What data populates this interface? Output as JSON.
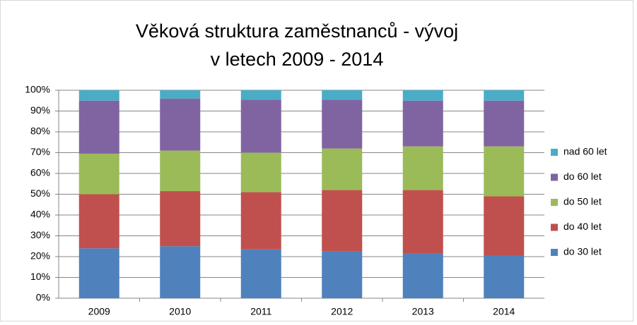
{
  "chart_data": {
    "type": "stacked_bar_100",
    "title": [
      "Věková struktura zaměstnanců - vývoj",
      "v letech 2009 - 2014"
    ],
    "categories": [
      "2009",
      "2010",
      "2011",
      "2012",
      "2013",
      "2014"
    ],
    "series": [
      {
        "name": "do 30 let",
        "color": "#4f81bd",
        "values": [
          24,
          25,
          23.5,
          22.5,
          21.5,
          20.5
        ]
      },
      {
        "name": "do 40 let",
        "color": "#c0504d",
        "values": [
          26,
          26.5,
          27.5,
          29.5,
          30.5,
          28.5
        ]
      },
      {
        "name": "do 50 let",
        "color": "#9bbb59",
        "values": [
          19.5,
          19.5,
          19,
          20,
          21,
          24
        ]
      },
      {
        "name": "do 60 let",
        "color": "#8064a2",
        "values": [
          25.5,
          25,
          25.5,
          23.5,
          22,
          22
        ]
      },
      {
        "name": "nad 60 let",
        "color": "#4bacc6",
        "values": [
          5,
          4,
          4.5,
          4.5,
          5,
          5
        ]
      }
    ],
    "ylim": [
      0,
      100
    ],
    "yticks": [
      {
        "value": 0,
        "label": "0%"
      },
      {
        "value": 10,
        "label": "10%"
      },
      {
        "value": 20,
        "label": "20%"
      },
      {
        "value": 30,
        "label": "30%"
      },
      {
        "value": 40,
        "label": "40%"
      },
      {
        "value": 50,
        "label": "50%"
      },
      {
        "value": 60,
        "label": "60%"
      },
      {
        "value": 70,
        "label": "70%"
      },
      {
        "value": 80,
        "label": "80%"
      },
      {
        "value": 90,
        "label": "90%"
      },
      {
        "value": 100,
        "label": "100%"
      }
    ],
    "grid": true,
    "legend": "right"
  }
}
